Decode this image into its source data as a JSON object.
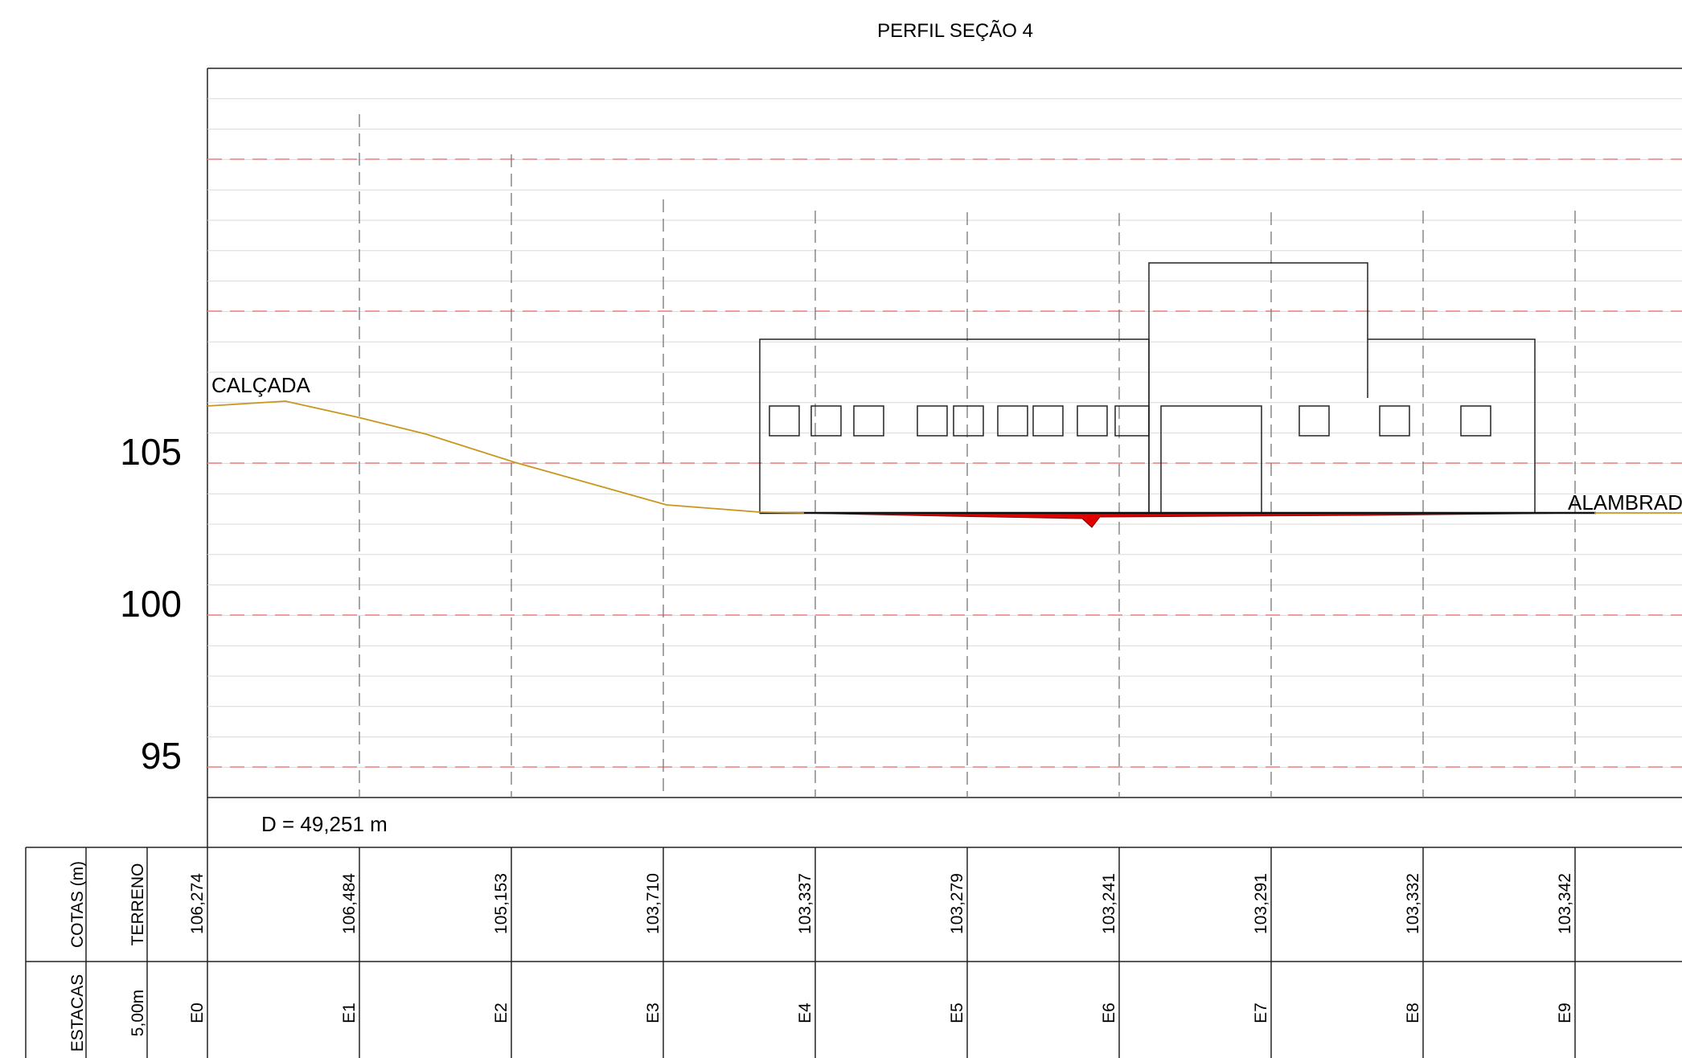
{
  "title": "PERFIL SEÇÃO 4",
  "elevation_labels": [
    "105",
    "100",
    "95"
  ],
  "distance": "D = 49,251 m",
  "annotations": {
    "start": "CALÇADA",
    "end": "ALAMBRADO"
  },
  "table": {
    "cotas_header": "COTAS (m)",
    "terreno_header": "TERRENO",
    "estacas_header": "ESTACAS",
    "interval": "5,00m",
    "terreno_values": [
      "106,274",
      "106,484",
      "105,153",
      "103,710",
      "103,337",
      "103,279",
      "103,241",
      "103,291",
      "103,332",
      "103,342"
    ],
    "stations": [
      "E0",
      "E1",
      "E2",
      "E3",
      "E4",
      "E5",
      "E6",
      "E7",
      "E8",
      "E9"
    ]
  },
  "colors": {
    "terrain_line": "#c8961e",
    "reference_lines": "#f08080",
    "fill_section": "#e00000",
    "grid": "#d9d9d9"
  }
}
